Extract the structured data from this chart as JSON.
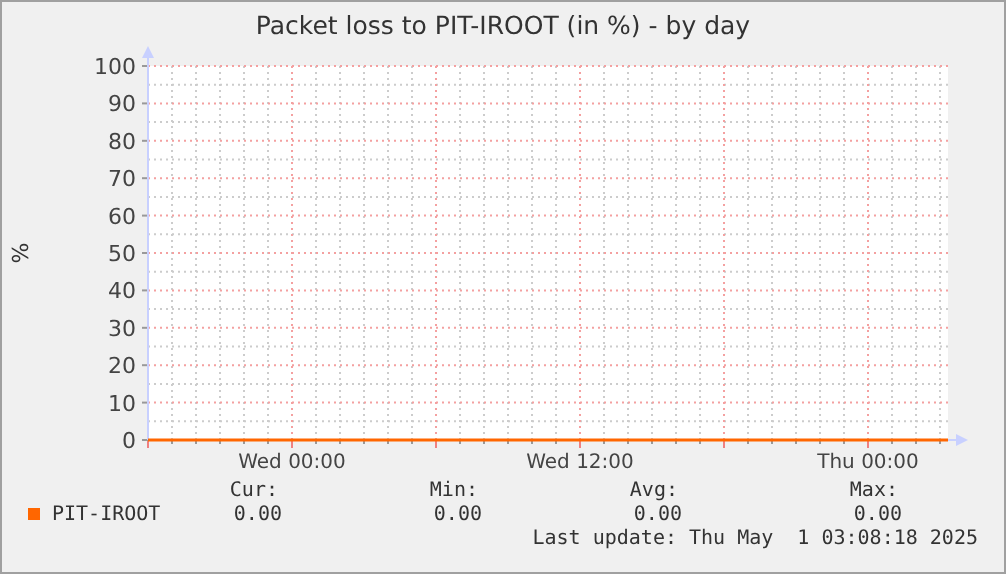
{
  "chart_data": {
    "type": "line",
    "title": "Packet loss to PIT-IROOT (in %) - by day",
    "ylabel": "%",
    "x": [
      "2025-04-29T18:00",
      "2025-05-01T03:20"
    ],
    "series": [
      {
        "name": "PIT-IROOT",
        "color": "#ff6600",
        "values": [
          0,
          0
        ]
      }
    ],
    "xlim": [
      "2025-04-29T18:00",
      "2025-05-01T03:20"
    ],
    "xticks": [
      {
        "value": "2025-04-29T18:00",
        "label": null
      },
      {
        "value": "2025-04-30T00:00",
        "label": "Wed 00:00"
      },
      {
        "value": "2025-04-30T06:00",
        "label": null
      },
      {
        "value": "2025-04-30T12:00",
        "label": "Wed 12:00"
      },
      {
        "value": "2025-04-30T18:00",
        "label": null
      },
      {
        "value": "2025-05-01T00:00",
        "label": "Thu 00:00"
      }
    ],
    "ylim": [
      0,
      100
    ],
    "yticks": [
      0,
      10,
      20,
      30,
      40,
      50,
      60,
      70,
      80,
      90,
      100
    ],
    "grid": true,
    "legend": "bottom left",
    "marker": "none",
    "line_style": "solid",
    "annotations": [
      "Cur:",
      "Min:",
      "Avg:",
      "Max:",
      "0.00",
      "0.00",
      "0.00",
      "0.00",
      "Last update: Thu May  1 03:08:18 2025"
    ]
  }
}
